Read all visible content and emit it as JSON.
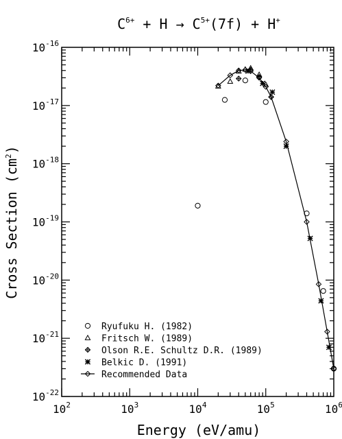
{
  "chart_data": {
    "type": "scatter",
    "title_parts": {
      "a": "C",
      "a_sup": "6+",
      "b": " + H → C",
      "b_sup": "5+",
      "c": "(7f) + H",
      "c_sup": "+"
    },
    "xlabel": "Energy (eV/amu)",
    "ylabel_pre": "Cross Section (cm",
    "ylabel_sup": "2",
    "ylabel_post": ")",
    "x_scale": "log",
    "y_scale": "log",
    "xlim": [
      100,
      1000000
    ],
    "ylim": [
      1e-22,
      1e-16
    ],
    "grid": false,
    "legend_position": "bottom-left",
    "x_ticks": [
      {
        "value": 100,
        "base": "10",
        "exp": "2"
      },
      {
        "value": 1000,
        "base": "10",
        "exp": "3"
      },
      {
        "value": 10000,
        "base": "10",
        "exp": "4"
      },
      {
        "value": 100000,
        "base": "10",
        "exp": "5"
      },
      {
        "value": 1000000,
        "base": "10",
        "exp": "6"
      }
    ],
    "y_ticks": [
      {
        "value": 1e-16,
        "base": "10",
        "exp": "-16"
      },
      {
        "value": 1e-17,
        "base": "10",
        "exp": "-17"
      },
      {
        "value": 1e-18,
        "base": "10",
        "exp": "-18"
      },
      {
        "value": 1e-19,
        "base": "10",
        "exp": "-19"
      },
      {
        "value": 1e-20,
        "base": "10",
        "exp": "-20"
      },
      {
        "value": 1e-21,
        "base": "10",
        "exp": "-21"
      },
      {
        "value": 1e-22,
        "base": "10",
        "exp": "-22"
      }
    ],
    "series": [
      {
        "name": "Ryufuku H. (1982)",
        "marker": "circle",
        "points": [
          {
            "x": 10000,
            "y": 1.9e-19
          },
          {
            "x": 25000,
            "y": 1.25e-17
          },
          {
            "x": 50000,
            "y": 2.7e-17
          },
          {
            "x": 100000,
            "y": 1.15e-17
          },
          {
            "x": 400000,
            "y": 1.4e-19
          },
          {
            "x": 700000,
            "y": 6.5e-21
          },
          {
            "x": 1000000,
            "y": 3e-22
          }
        ]
      },
      {
        "name": "Fritsch W. (1989)",
        "marker": "triangle",
        "points": [
          {
            "x": 20000,
            "y": 2.15e-17
          },
          {
            "x": 30000,
            "y": 2.6e-17
          },
          {
            "x": 40000,
            "y": 3.9e-17
          },
          {
            "x": 50000,
            "y": 4.2e-17
          },
          {
            "x": 60000,
            "y": 4.4e-17
          },
          {
            "x": 80000,
            "y": 3.4e-17
          },
          {
            "x": 100000,
            "y": 2.3e-17
          }
        ]
      },
      {
        "name": "Olson R.E. Schultz D.R. (1989)",
        "marker": "plus-diamond",
        "points": [
          {
            "x": 40000,
            "y": 2.9e-17
          },
          {
            "x": 60000,
            "y": 4.1e-17
          },
          {
            "x": 80000,
            "y": 3.1e-17
          },
          {
            "x": 120000,
            "y": 1.4e-17
          }
        ]
      },
      {
        "name": "Belkic D. (1991)",
        "marker": "star",
        "points": [
          {
            "x": 55000,
            "y": 3.9e-17
          },
          {
            "x": 90000,
            "y": 2.4e-17
          },
          {
            "x": 125000,
            "y": 1.7e-17
          },
          {
            "x": 200000,
            "y": 2e-18
          },
          {
            "x": 450000,
            "y": 5.2e-20
          },
          {
            "x": 650000,
            "y": 4.4e-21
          },
          {
            "x": 850000,
            "y": 7e-22
          }
        ]
      },
      {
        "name": "Recommended Data",
        "marker": "diamond",
        "line": true,
        "points": [
          {
            "x": 20000,
            "y": 2.2e-17
          },
          {
            "x": 30000,
            "y": 3.3e-17
          },
          {
            "x": 40000,
            "y": 4e-17
          },
          {
            "x": 50000,
            "y": 4.1e-17
          },
          {
            "x": 60000,
            "y": 3.9e-17
          },
          {
            "x": 80000,
            "y": 3e-17
          },
          {
            "x": 100000,
            "y": 2.1e-17
          },
          {
            "x": 120000,
            "y": 1.4e-17
          },
          {
            "x": 200000,
            "y": 2.4e-18
          },
          {
            "x": 400000,
            "y": 1e-19
          },
          {
            "x": 600000,
            "y": 8.5e-21
          },
          {
            "x": 800000,
            "y": 1.3e-21
          },
          {
            "x": 1000000,
            "y": 3e-22
          }
        ]
      }
    ]
  }
}
